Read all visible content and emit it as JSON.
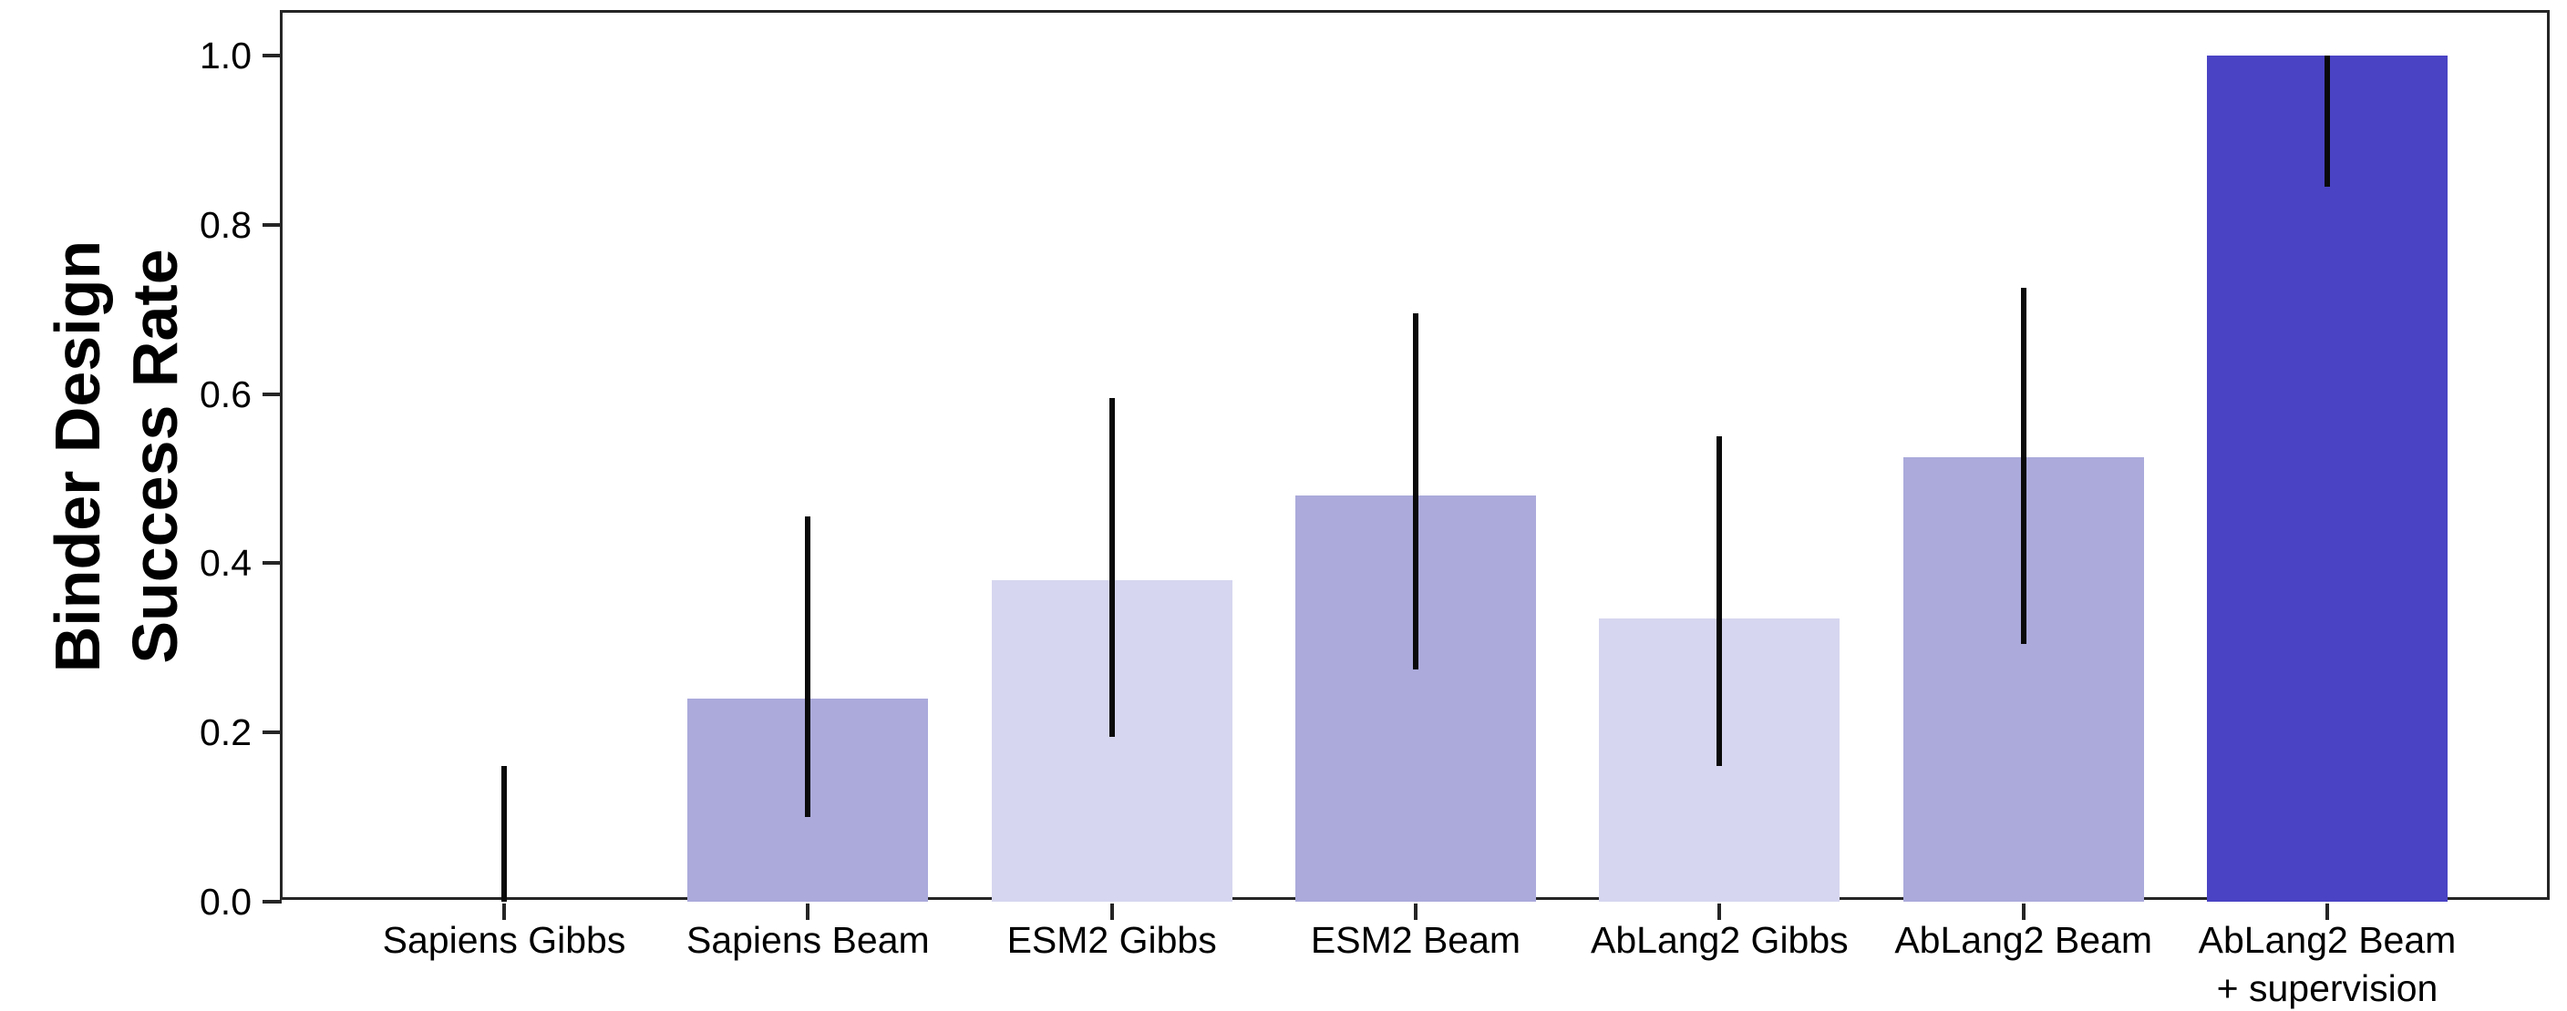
{
  "figure": {
    "ylabel_lines": [
      "Binder Design",
      "Success Rate"
    ]
  },
  "chart_data": {
    "type": "bar",
    "title": "",
    "xlabel": "",
    "ylabel": "Binder Design\nSuccess Rate",
    "categories": [
      "Sapiens Gibbs",
      "Sapiens Beam",
      "ESM2 Gibbs",
      "ESM2 Beam",
      "AbLang2 Gibbs",
      "AbLang2 Beam",
      "AbLang2 Beam\n+ supervision"
    ],
    "values": [
      0.0,
      0.24,
      0.38,
      0.48,
      0.335,
      0.525,
      1.0
    ],
    "error_low": [
      0.0,
      0.1,
      0.195,
      0.275,
      0.16,
      0.305,
      0.845
    ],
    "error_high": [
      0.16,
      0.455,
      0.595,
      0.695,
      0.55,
      0.725,
      1.0
    ],
    "bar_colors": [
      "#abaadb",
      "#abaadb",
      "#d6d6f0",
      "#abaadb",
      "#d6d6f0",
      "#abaadb",
      "#4a43c4"
    ],
    "error_color": "#0a0a0a",
    "axis_color": "#252525",
    "yticks": [
      0.0,
      0.2,
      0.4,
      0.6,
      0.8,
      1.0
    ],
    "ylim": [
      0.0,
      1.05
    ],
    "grid": false,
    "legend": "none",
    "background": "#ffffff"
  }
}
